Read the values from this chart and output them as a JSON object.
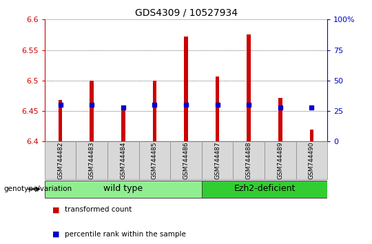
{
  "title": "GDS4309 / 10527934",
  "samples": [
    "GSM744482",
    "GSM744483",
    "GSM744484",
    "GSM744485",
    "GSM744486",
    "GSM744487",
    "GSM744488",
    "GSM744489",
    "GSM744490"
  ],
  "transformed_counts": [
    6.468,
    6.5,
    6.458,
    6.5,
    6.572,
    6.507,
    6.575,
    6.472,
    6.42
  ],
  "percentile_ranks": [
    30,
    30,
    28,
    30,
    30,
    30,
    30,
    28,
    28
  ],
  "ylim": [
    6.4,
    6.6
  ],
  "yticks": [
    6.4,
    6.45,
    6.5,
    6.55,
    6.6
  ],
  "right_yticks": [
    0,
    25,
    50,
    75,
    100
  ],
  "right_ylim": [
    0,
    100
  ],
  "bar_color": "#CC0000",
  "marker_color": "#0000CC",
  "left_tick_color": "#CC0000",
  "right_tick_color": "#0000CC",
  "wt_color": "#90EE90",
  "ezh_color": "#32CD32",
  "wt_label": "wild type",
  "ezh_label": "Ezh2-deficient",
  "wt_indices": [
    0,
    4
  ],
  "ezh_indices": [
    5,
    8
  ],
  "genotype_label": "genotype/variation",
  "legend_red": "transformed count",
  "legend_blue": "percentile rank within the sample",
  "bar_width": 0.12,
  "base_value": 6.4
}
